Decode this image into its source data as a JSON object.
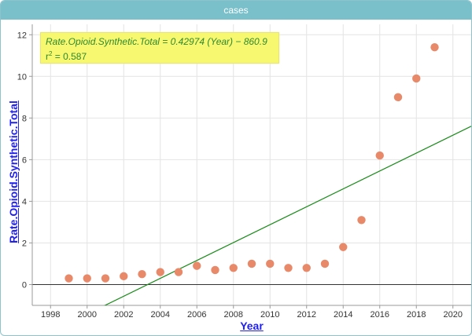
{
  "window": {
    "title": "cases"
  },
  "regression": {
    "equation": "Rate.Opioid.Synthetic.Total = 0.42974 (Year) − 860.9",
    "r2_label": "r",
    "r2_sup": "2",
    "r2_value": " = 0.587",
    "slope": 0.42974,
    "intercept": -860.9,
    "line_color": "#1a8c1a"
  },
  "chart_data": {
    "type": "scatter",
    "xlabel": "Year",
    "ylabel": "Rate.Opioid.Synthetic.Total",
    "xlim": [
      1997,
      2021
    ],
    "ylim": [
      -1,
      12.5
    ],
    "xticks": [
      1998,
      2000,
      2002,
      2004,
      2006,
      2008,
      2010,
      2012,
      2014,
      2016,
      2018,
      2020
    ],
    "yticks": [
      0,
      2,
      4,
      6,
      8,
      10,
      12
    ],
    "grid": true,
    "point_color": "#e8896a",
    "points": [
      {
        "x": 1999,
        "y": 0.3
      },
      {
        "x": 2000,
        "y": 0.3
      },
      {
        "x": 2001,
        "y": 0.3
      },
      {
        "x": 2002,
        "y": 0.4
      },
      {
        "x": 2003,
        "y": 0.5
      },
      {
        "x": 2004,
        "y": 0.6
      },
      {
        "x": 2005,
        "y": 0.6
      },
      {
        "x": 2006,
        "y": 0.9
      },
      {
        "x": 2007,
        "y": 0.7
      },
      {
        "x": 2008,
        "y": 0.8
      },
      {
        "x": 2009,
        "y": 1.0
      },
      {
        "x": 2010,
        "y": 1.0
      },
      {
        "x": 2011,
        "y": 0.8
      },
      {
        "x": 2012,
        "y": 0.8
      },
      {
        "x": 2013,
        "y": 1.0
      },
      {
        "x": 2014,
        "y": 1.8
      },
      {
        "x": 2015,
        "y": 3.1
      },
      {
        "x": 2016,
        "y": 6.2
      },
      {
        "x": 2017,
        "y": 9.0
      },
      {
        "x": 2018,
        "y": 9.9
      },
      {
        "x": 2019,
        "y": 11.4
      }
    ]
  }
}
